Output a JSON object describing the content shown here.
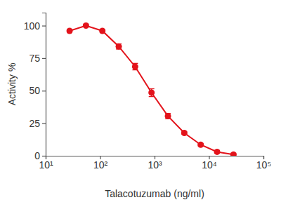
{
  "chart_data": {
    "type": "line",
    "x_label": "Talacotuzumab (ng/ml)",
    "y_label": "Activity %",
    "x": [
      27.5,
      55,
      110,
      220,
      440,
      880,
      1760,
      3520,
      7040,
      14080,
      28160
    ],
    "series": [
      {
        "name": "Talacotuzumab",
        "color": "#e3131b",
        "marker": "circle",
        "values": [
          96,
          100,
          96,
          84,
          68.5,
          48.5,
          30.5,
          17.5,
          8.5,
          3,
          1
        ],
        "errors": [
          1,
          1,
          1,
          2,
          2.5,
          3,
          2,
          1,
          1,
          1,
          1
        ]
      }
    ],
    "log": "x",
    "xlim": [
      10,
      100000
    ],
    "xticks": [
      {
        "value": 10,
        "label": "10¹"
      },
      {
        "value": 100,
        "label": "10²"
      },
      {
        "value": 1000,
        "label": "10³"
      },
      {
        "value": 10000,
        "label": "10⁴"
      },
      {
        "value": 100000,
        "label": "10⁵"
      }
    ],
    "ylim": [
      0,
      110
    ],
    "yticks": [
      0,
      25,
      50,
      75,
      100
    ],
    "grid": false
  }
}
